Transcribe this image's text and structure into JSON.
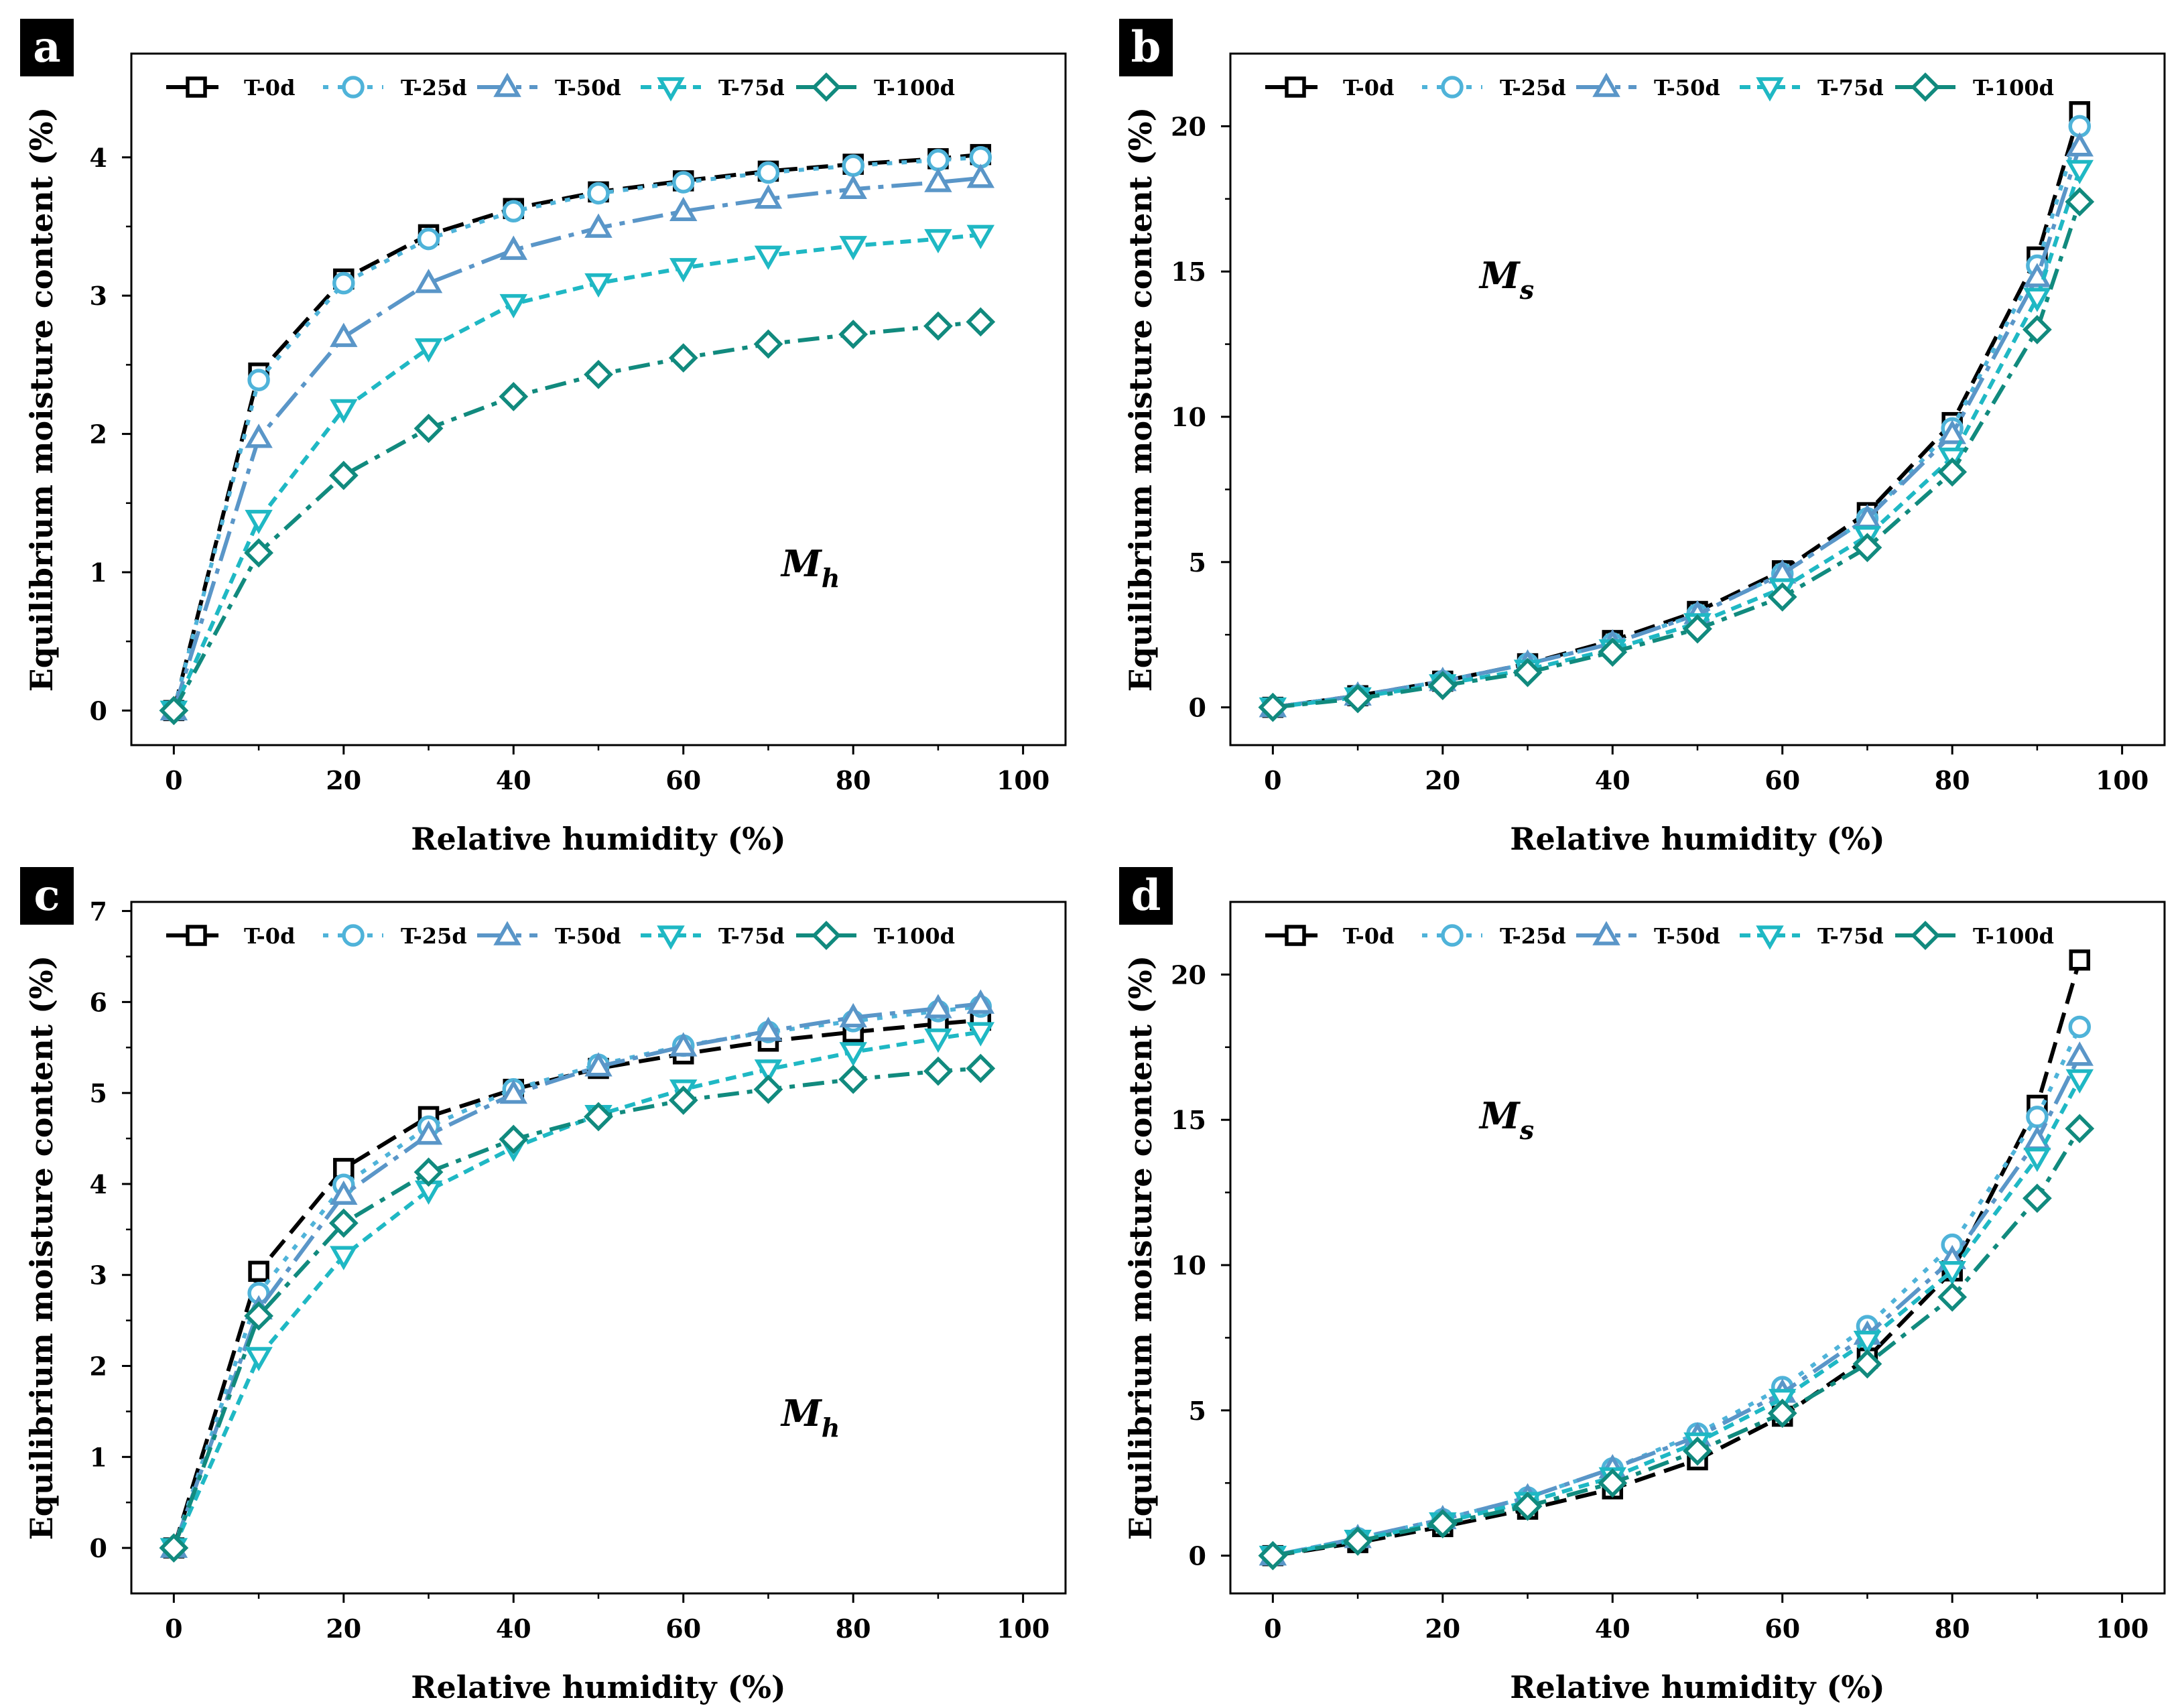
{
  "series_styles": [
    {
      "name": "T-0d",
      "color": "#000000",
      "marker": "square",
      "dash": "32,14"
    },
    {
      "name": "T-25d",
      "color": "#4FB3D9",
      "marker": "circle",
      "dash": "8,14"
    },
    {
      "name": "T-50d",
      "color": "#5A96C8",
      "marker": "triangle-up",
      "dash": "46,12,8,12"
    },
    {
      "name": "T-75d",
      "color": "#1FB8C4",
      "marker": "triangle-down",
      "dash": "16,10"
    },
    {
      "name": "T-100d",
      "color": "#118A7E",
      "marker": "diamond",
      "dash": "32,12,8,12"
    }
  ],
  "chart_data": [
    {
      "panel": "a",
      "type": "line",
      "xlabel": "Relative humidity (%)",
      "ylabel": "Equilibrium moisture content (%)",
      "xlim": [
        -5,
        105
      ],
      "ylim": [
        -0.25,
        4.75
      ],
      "xticks": [
        0,
        20,
        40,
        60,
        80,
        100
      ],
      "yticks": [
        0,
        1,
        2,
        3,
        4
      ],
      "annotation": {
        "main": "M",
        "sub": "h"
      },
      "x": [
        0,
        10,
        20,
        30,
        40,
        50,
        60,
        70,
        80,
        90,
        95
      ],
      "series": [
        {
          "name": "T-0d",
          "values": [
            0,
            2.44,
            3.12,
            3.44,
            3.63,
            3.75,
            3.83,
            3.9,
            3.95,
            3.99,
            4.02
          ]
        },
        {
          "name": "T-25d",
          "values": [
            0,
            2.39,
            3.09,
            3.41,
            3.61,
            3.74,
            3.82,
            3.89,
            3.94,
            3.98,
            4.0
          ]
        },
        {
          "name": "T-50d",
          "values": [
            0,
            1.97,
            2.7,
            3.09,
            3.33,
            3.49,
            3.61,
            3.7,
            3.77,
            3.82,
            3.85
          ]
        },
        {
          "name": "T-75d",
          "values": [
            0,
            1.38,
            2.18,
            2.62,
            2.94,
            3.09,
            3.2,
            3.29,
            3.36,
            3.41,
            3.44
          ]
        },
        {
          "name": "T-100d",
          "values": [
            0,
            1.14,
            1.7,
            2.04,
            2.27,
            2.43,
            2.55,
            2.65,
            2.72,
            2.78,
            2.81
          ]
        }
      ]
    },
    {
      "panel": "b",
      "type": "line",
      "xlabel": "Relative humidity (%)",
      "ylabel": "Equilibrium moisture content (%)",
      "xlim": [
        -5,
        105
      ],
      "ylim": [
        -1.3,
        22.5
      ],
      "xticks": [
        0,
        20,
        40,
        60,
        80,
        100
      ],
      "yticks": [
        0,
        5,
        10,
        15,
        20
      ],
      "annotation": {
        "main": "M",
        "sub": "s"
      },
      "x": [
        0,
        10,
        20,
        30,
        40,
        50,
        60,
        70,
        80,
        90,
        95
      ],
      "series": [
        {
          "name": "T-0d",
          "values": [
            0,
            0.4,
            0.9,
            1.5,
            2.3,
            3.3,
            4.7,
            6.7,
            9.8,
            15.5,
            20.5
          ]
        },
        {
          "name": "T-25d",
          "values": [
            0,
            0.4,
            0.9,
            1.5,
            2.2,
            3.2,
            4.6,
            6.5,
            9.6,
            15.2,
            20.0
          ]
        },
        {
          "name": "T-50d",
          "values": [
            0,
            0.4,
            0.9,
            1.5,
            2.2,
            3.2,
            4.6,
            6.5,
            9.4,
            14.8,
            19.3
          ]
        },
        {
          "name": "T-75d",
          "values": [
            0,
            0.35,
            0.8,
            1.3,
            2.0,
            2.9,
            4.1,
            5.9,
            8.6,
            14.1,
            18.5
          ]
        },
        {
          "name": "T-100d",
          "values": [
            0,
            0.3,
            0.75,
            1.2,
            1.9,
            2.7,
            3.8,
            5.5,
            8.1,
            13.0,
            17.4
          ]
        }
      ]
    },
    {
      "panel": "c",
      "type": "line",
      "xlabel": "Relative humidity (%)",
      "ylabel": "Equilibrium moisture content (%)",
      "xlim": [
        -5,
        105
      ],
      "ylim": [
        -0.5,
        7.1
      ],
      "xticks": [
        0,
        20,
        40,
        60,
        80,
        100
      ],
      "yticks": [
        0,
        1,
        2,
        3,
        4,
        5,
        6,
        7
      ],
      "annotation": {
        "main": "M",
        "sub": "h"
      },
      "x": [
        0,
        10,
        20,
        30,
        40,
        50,
        60,
        70,
        80,
        90,
        95
      ],
      "series": [
        {
          "name": "T-0d",
          "values": [
            0,
            3.04,
            4.17,
            4.74,
            5.04,
            5.27,
            5.43,
            5.57,
            5.67,
            5.76,
            5.8
          ]
        },
        {
          "name": "T-25d",
          "values": [
            0,
            2.8,
            3.99,
            4.63,
            5.04,
            5.31,
            5.52,
            5.67,
            5.79,
            5.9,
            5.95
          ]
        },
        {
          "name": "T-50d",
          "values": [
            0,
            2.62,
            3.88,
            4.54,
            4.99,
            5.29,
            5.51,
            5.68,
            5.83,
            5.93,
            5.98
          ]
        },
        {
          "name": "T-75d",
          "values": [
            0,
            2.1,
            3.21,
            3.93,
            4.4,
            4.76,
            5.04,
            5.26,
            5.45,
            5.6,
            5.67
          ]
        },
        {
          "name": "T-100d",
          "values": [
            0,
            2.55,
            3.57,
            4.13,
            4.49,
            4.74,
            4.92,
            5.04,
            5.15,
            5.24,
            5.27
          ]
        }
      ]
    },
    {
      "panel": "d",
      "type": "line",
      "xlabel": "Relative humidity (%)",
      "ylabel": "Equilibrium moisture content (%)",
      "xlim": [
        -5,
        105
      ],
      "ylim": [
        -1.3,
        22.5
      ],
      "xticks": [
        0,
        20,
        40,
        60,
        80,
        100
      ],
      "yticks": [
        0,
        5,
        10,
        15,
        20
      ],
      "annotation": {
        "main": "M",
        "sub": "s"
      },
      "x": [
        0,
        10,
        20,
        30,
        40,
        50,
        60,
        70,
        80,
        90,
        95
      ],
      "series": [
        {
          "name": "T-0d",
          "values": [
            0,
            0.45,
            1.0,
            1.6,
            2.3,
            3.3,
            4.8,
            6.8,
            9.8,
            15.5,
            20.5
          ]
        },
        {
          "name": "T-25d",
          "values": [
            0,
            0.6,
            1.25,
            2.0,
            3.0,
            4.2,
            5.8,
            7.9,
            10.7,
            15.1,
            18.2
          ]
        },
        {
          "name": "T-50d",
          "values": [
            0,
            0.6,
            1.25,
            2.0,
            3.0,
            4.1,
            5.6,
            7.6,
            10.2,
            14.3,
            17.2
          ]
        },
        {
          "name": "T-75d",
          "values": [
            0,
            0.55,
            1.15,
            1.85,
            2.7,
            3.9,
            5.4,
            7.4,
            9.8,
            13.7,
            16.4
          ]
        },
        {
          "name": "T-100d",
          "values": [
            0,
            0.5,
            1.1,
            1.7,
            2.5,
            3.6,
            4.9,
            6.6,
            8.9,
            12.3,
            14.7
          ]
        }
      ]
    }
  ]
}
